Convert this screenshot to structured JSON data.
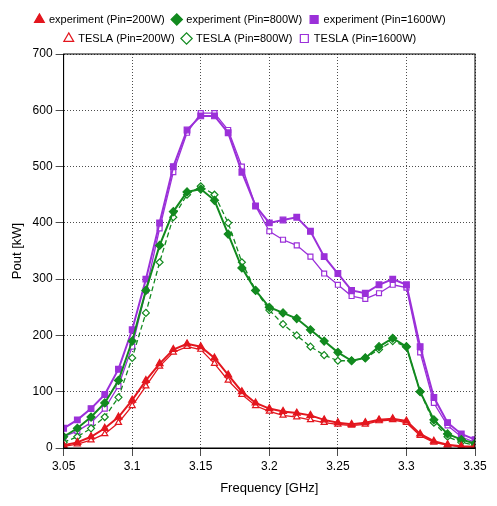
{
  "chart_data": {
    "type": "line",
    "x_label": "Frequency [GHz]",
    "y_label": "Pout [kW]",
    "x": [
      3.05,
      3.06,
      3.07,
      3.08,
      3.09,
      3.1,
      3.11,
      3.12,
      3.13,
      3.14,
      3.15,
      3.16,
      3.17,
      3.18,
      3.19,
      3.2,
      3.21,
      3.22,
      3.23,
      3.24,
      3.25,
      3.26,
      3.27,
      3.28,
      3.29,
      3.3,
      3.31,
      3.32,
      3.33,
      3.34,
      3.35
    ],
    "series": [
      {
        "name": "experiment (Pin=200W)",
        "color": "#e3161e",
        "marker": "triangle",
        "line_style": "solid",
        "values": [
          5,
          10,
          20,
          35,
          55,
          85,
          120,
          150,
          175,
          185,
          180,
          160,
          130,
          100,
          80,
          70,
          65,
          62,
          58,
          50,
          45,
          42,
          45,
          50,
          52,
          48,
          25,
          12,
          6,
          3,
          2
        ]
      },
      {
        "name": "experiment (Pin=800W)",
        "color": "#128a1f",
        "marker": "diamond",
        "line_style": "solid",
        "values": [
          20,
          35,
          55,
          80,
          120,
          190,
          280,
          360,
          420,
          455,
          460,
          440,
          380,
          320,
          280,
          250,
          240,
          230,
          210,
          190,
          170,
          155,
          160,
          180,
          195,
          180,
          100,
          50,
          25,
          15,
          8
        ]
      },
      {
        "name": "experiment (Pin=1600W)",
        "color": "#9b30d9",
        "marker": "square",
        "line_style": "solid",
        "values": [
          35,
          50,
          70,
          95,
          140,
          210,
          300,
          400,
          500,
          565,
          590,
          590,
          560,
          490,
          430,
          400,
          405,
          410,
          385,
          340,
          310,
          280,
          275,
          290,
          300,
          290,
          180,
          90,
          45,
          25,
          15
        ]
      },
      {
        "name": "TESLA (Pin=200W)",
        "color": "#e3161e",
        "marker": "open-triangle",
        "line_style": "solid",
        "values": [
          3,
          7,
          14,
          25,
          45,
          75,
          110,
          145,
          170,
          180,
          175,
          150,
          120,
          95,
          75,
          65,
          58,
          55,
          50,
          45,
          42,
          40,
          42,
          48,
          50,
          45,
          22,
          10,
          5,
          2,
          1
        ]
      },
      {
        "name": "TESLA (Pin=800W)",
        "color": "#128a1f",
        "marker": "open-diamond",
        "line_style": "dashed",
        "values": [
          10,
          20,
          35,
          55,
          90,
          160,
          240,
          330,
          410,
          450,
          465,
          450,
          400,
          330,
          280,
          245,
          220,
          200,
          180,
          165,
          155,
          155,
          160,
          175,
          190,
          180,
          100,
          45,
          20,
          10,
          5
        ]
      },
      {
        "name": "TESLA (Pin=1600W)",
        "color": "#9b30d9",
        "marker": "open-square",
        "line_style": "solid",
        "values": [
          20,
          30,
          45,
          70,
          110,
          180,
          280,
          390,
          490,
          560,
          595,
          595,
          565,
          500,
          430,
          385,
          370,
          360,
          340,
          310,
          290,
          270,
          265,
          275,
          290,
          285,
          170,
          80,
          40,
          20,
          10
        ]
      }
    ],
    "xlim": [
      3.05,
      3.35
    ],
    "xticks": [
      3.05,
      3.1,
      3.15,
      3.2,
      3.25,
      3.3,
      3.35
    ],
    "ylim": [
      0,
      700
    ],
    "yticks": [
      0,
      100,
      200,
      300,
      400,
      500,
      600,
      700
    ],
    "grid": true,
    "legend": "top"
  }
}
